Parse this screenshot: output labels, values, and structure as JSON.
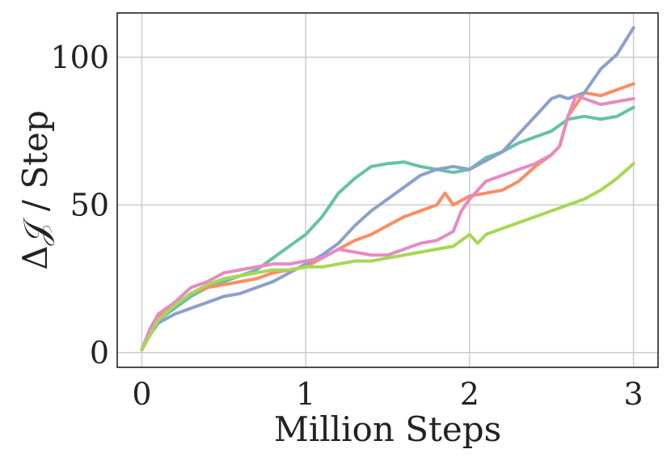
{
  "chart_data": {
    "type": "line",
    "title": "",
    "xlabel": "Million Steps",
    "ylabel": "Δ𝒥 / Step",
    "xlim": [
      -0.15,
      3.15
    ],
    "ylim": [
      -5,
      115
    ],
    "xticks": [
      0,
      1,
      2,
      3
    ],
    "xtick_labels": [
      "0",
      "1",
      "2",
      "3"
    ],
    "yticks": [
      0,
      50,
      100
    ],
    "ytick_labels": [
      "0",
      "50",
      "100"
    ],
    "grid": true,
    "legend": "none",
    "series": [
      {
        "color": "#66c2a5",
        "x": [
          0,
          0.05,
          0.1,
          0.2,
          0.3,
          0.4,
          0.5,
          0.6,
          0.7,
          0.8,
          0.9,
          1.0,
          1.1,
          1.2,
          1.3,
          1.4,
          1.5,
          1.6,
          1.7,
          1.8,
          1.9,
          2.0,
          2.1,
          2.2,
          2.3,
          2.4,
          2.5,
          2.6,
          2.7,
          2.8,
          2.9,
          3.0
        ],
        "y": [
          1,
          6,
          11,
          15,
          19,
          22,
          24,
          26,
          28,
          32,
          36,
          40,
          46,
          54,
          59,
          63,
          64,
          64.5,
          63,
          62,
          61,
          62,
          66,
          68,
          71,
          73,
          75,
          79,
          80,
          79,
          80,
          83
        ]
      },
      {
        "color": "#fc8d62",
        "x": [
          0,
          0.05,
          0.1,
          0.2,
          0.3,
          0.4,
          0.5,
          0.6,
          0.7,
          0.8,
          0.9,
          1.0,
          1.1,
          1.2,
          1.3,
          1.4,
          1.5,
          1.6,
          1.7,
          1.8,
          1.85,
          1.9,
          2.0,
          2.1,
          2.2,
          2.3,
          2.4,
          2.5,
          2.55,
          2.6,
          2.7,
          2.8,
          2.9,
          3.0
        ],
        "y": [
          1,
          7,
          12,
          16,
          20,
          22,
          23,
          24,
          25,
          27,
          28,
          29,
          32,
          35,
          38,
          40,
          43,
          46,
          48,
          50,
          54,
          50,
          53,
          54,
          55,
          58,
          63,
          67,
          70,
          80,
          88,
          87,
          89,
          91
        ]
      },
      {
        "color": "#8da0cb",
        "x": [
          0,
          0.05,
          0.1,
          0.2,
          0.3,
          0.4,
          0.5,
          0.6,
          0.7,
          0.8,
          0.9,
          1.0,
          1.1,
          1.2,
          1.3,
          1.4,
          1.5,
          1.6,
          1.7,
          1.8,
          1.9,
          2.0,
          2.1,
          2.2,
          2.3,
          2.4,
          2.5,
          2.55,
          2.6,
          2.7,
          2.8,
          2.9,
          3.0
        ],
        "y": [
          1,
          6,
          10,
          13,
          15,
          17,
          19,
          20,
          22,
          24,
          27,
          30,
          33,
          37,
          43,
          48,
          52,
          56,
          60,
          62,
          63,
          62,
          65,
          68,
          74,
          80,
          86,
          87,
          86,
          88,
          96,
          101,
          110
        ]
      },
      {
        "color": "#e78ac3",
        "x": [
          0,
          0.05,
          0.1,
          0.2,
          0.3,
          0.4,
          0.5,
          0.6,
          0.7,
          0.8,
          0.9,
          1.0,
          1.1,
          1.2,
          1.3,
          1.4,
          1.5,
          1.6,
          1.7,
          1.8,
          1.9,
          1.95,
          2.0,
          2.1,
          2.2,
          2.3,
          2.4,
          2.5,
          2.55,
          2.6,
          2.65,
          2.7,
          2.8,
          2.9,
          3.0
        ],
        "y": [
          1,
          8,
          13,
          17,
          22,
          24,
          27,
          28,
          29,
          30,
          30,
          31,
          32,
          35,
          34,
          33,
          33,
          35,
          37,
          38,
          41,
          48,
          52,
          58,
          60,
          62,
          64,
          67,
          70,
          80,
          87,
          86,
          84,
          85,
          86
        ]
      },
      {
        "color": "#a6d854",
        "x": [
          0,
          0.05,
          0.1,
          0.2,
          0.3,
          0.4,
          0.5,
          0.6,
          0.7,
          0.8,
          0.9,
          1.0,
          1.1,
          1.2,
          1.3,
          1.4,
          1.5,
          1.6,
          1.7,
          1.8,
          1.9,
          1.95,
          2.0,
          2.05,
          2.1,
          2.2,
          2.3,
          2.4,
          2.5,
          2.6,
          2.7,
          2.8,
          2.9,
          3.0
        ],
        "y": [
          1,
          6,
          11,
          16,
          20,
          23,
          25,
          26,
          27,
          28,
          28,
          29,
          29,
          30,
          31,
          31,
          32,
          33,
          34,
          35,
          36,
          38,
          40,
          37,
          40,
          42,
          44,
          46,
          48,
          50,
          52,
          55,
          59,
          64
        ]
      }
    ]
  }
}
